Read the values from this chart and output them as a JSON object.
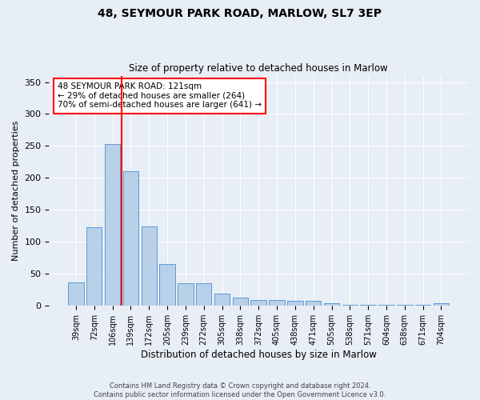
{
  "title1": "48, SEYMOUR PARK ROAD, MARLOW, SL7 3EP",
  "title2": "Size of property relative to detached houses in Marlow",
  "xlabel": "Distribution of detached houses by size in Marlow",
  "ylabel": "Number of detached properties",
  "categories": [
    "39sqm",
    "72sqm",
    "106sqm",
    "139sqm",
    "172sqm",
    "205sqm",
    "239sqm",
    "272sqm",
    "305sqm",
    "338sqm",
    "372sqm",
    "405sqm",
    "438sqm",
    "471sqm",
    "505sqm",
    "538sqm",
    "571sqm",
    "604sqm",
    "638sqm",
    "671sqm",
    "704sqm"
  ],
  "values": [
    37,
    123,
    253,
    211,
    124,
    65,
    35,
    35,
    19,
    13,
    9,
    9,
    8,
    8,
    4,
    2,
    1,
    1,
    1,
    1,
    4
  ],
  "bar_color": "#b8d0e8",
  "bar_edge_color": "#5b9bd5",
  "red_line_x": 2.5,
  "annotation_text": "48 SEYMOUR PARK ROAD: 121sqm\n← 29% of detached houses are smaller (264)\n70% of semi-detached houses are larger (641) →",
  "annotation_box_color": "white",
  "annotation_box_edge_color": "red",
  "red_line_color": "red",
  "ylim": [
    0,
    360
  ],
  "yticks": [
    0,
    50,
    100,
    150,
    200,
    250,
    300,
    350
  ],
  "footer1": "Contains HM Land Registry data © Crown copyright and database right 2024.",
  "footer2": "Contains public sector information licensed under the Open Government Licence v3.0.",
  "background_color": "#e8eef5",
  "plot_bg_color": "#e8eef5",
  "grid_color": "white",
  "fig_width": 6.0,
  "fig_height": 5.0
}
